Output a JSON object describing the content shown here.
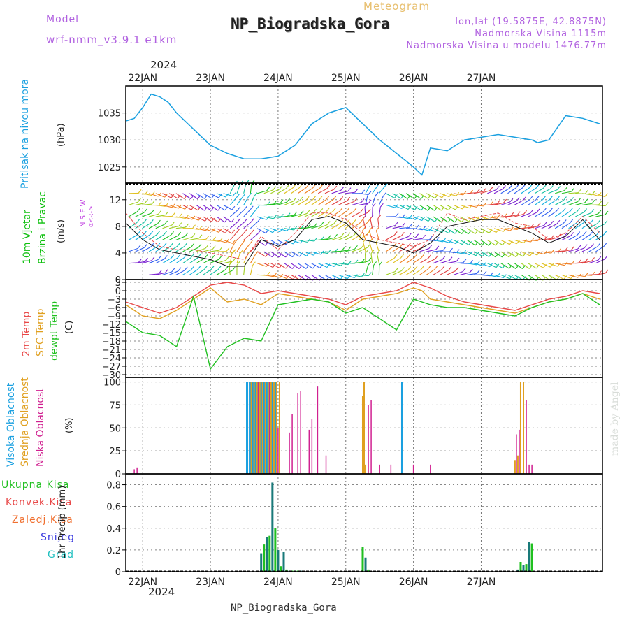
{
  "header": {
    "model_label": "Model",
    "model_name": "wrf-nmm_v3.9.1 e1km",
    "meteogram_label": "Meteogram",
    "station_title": "NP_Biogradska_Gora",
    "lonlat": "lon,lat (19.5875E, 42.8875N)",
    "elevation": "Nadmorska Visina 1115m",
    "model_elevation": "Nadmorska Visina u modelu 1476.77m",
    "footer_station": "NP_Biogradska_Gora",
    "watermark": "made by Angel",
    "year_top": "2024",
    "year_bottom": "2024"
  },
  "colors": {
    "pressure": "#1aa0e0",
    "wind_label": "#10c010",
    "dir_label": "#c040e0",
    "temp2m": "#e84848",
    "sfc": "#e0a020",
    "dew": "#20c020",
    "high": "#1aa0e0",
    "mid": "#e0a020",
    "low": "#d02090",
    "precip_total": "#20c020",
    "precip_conv": "#e84848",
    "precip_frozen": "#f07030",
    "precip_snow": "#4040e0",
    "precip_grad": "#20c0c0",
    "title": "#222222",
    "meteogram": "#e8c070",
    "model": "#b060e0"
  },
  "chart_data": [
    {
      "type": "line",
      "name": "pressure",
      "ylabel": "Pritisak na nivou mora",
      "unit": "(hPa)",
      "x_unit": "hours from 22JAN 00",
      "ylim": [
        1022,
        1040
      ],
      "yticks": [
        1025,
        1030,
        1035
      ],
      "x": [
        -6,
        -3,
        0,
        3,
        6,
        9,
        12,
        18,
        24,
        30,
        36,
        42,
        48,
        54,
        57,
        60,
        66,
        72,
        78,
        84,
        90,
        96,
        99,
        102,
        108,
        114,
        120,
        126,
        132,
        138,
        140,
        144,
        150,
        156,
        162
      ],
      "values": [
        1033.5,
        1034,
        1036,
        1038.5,
        1038,
        1037,
        1035,
        1032,
        1029,
        1027.5,
        1026.5,
        1026.5,
        1027,
        1029,
        1031,
        1033,
        1035,
        1036,
        1033,
        1030,
        1027.5,
        1025,
        1023.5,
        1028.5,
        1028,
        1030,
        1030.5,
        1031,
        1030.5,
        1030,
        1029.5,
        1030,
        1034.5,
        1034,
        1033
      ]
    },
    {
      "type": "barbs",
      "name": "wind",
      "ylabel": "10m Vjetar Brzina i Pravac",
      "unit": "(m/s)",
      "dir_legend": "N S E W",
      "dir_sub": "α<-:->",
      "ylim": [
        0,
        14.5
      ],
      "yticks": [
        0,
        4,
        8,
        12
      ],
      "x": [
        -6,
        0,
        6,
        12,
        18,
        24,
        30,
        36,
        42,
        48,
        54,
        60,
        66,
        72,
        78,
        84,
        90,
        96,
        102,
        108,
        114,
        120,
        126,
        132,
        138,
        144,
        150,
        156,
        162
      ],
      "speed": [
        8.5,
        6,
        4.5,
        4,
        3.5,
        3,
        2,
        2,
        6,
        5,
        6,
        9,
        9.5,
        8.5,
        6,
        5.5,
        5,
        4,
        5.5,
        8,
        8.5,
        9,
        9,
        8,
        7,
        5.5,
        6.5,
        9,
        6
      ],
      "gust": [
        10,
        7,
        5,
        4.5,
        4.5,
        4,
        3.5,
        3,
        6.5,
        4.5,
        7,
        10,
        10,
        9,
        7,
        6,
        5.5,
        5,
        6,
        10,
        9,
        9.5,
        10,
        8.5,
        8,
        6,
        7,
        9.5,
        7
      ]
    },
    {
      "type": "line",
      "name": "temperature",
      "ylabel_2m": "2m Temp",
      "ylabel_sfc": "SFC Temp",
      "ylabel_dew": "dewpt Temp",
      "unit": "(C)",
      "ylim": [
        -31,
        4
      ],
      "yticks": [
        3,
        0,
        -3,
        -6,
        -9,
        -12,
        -15,
        -18,
        -21,
        -24,
        -27,
        -30
      ],
      "x": [
        -6,
        0,
        6,
        12,
        18,
        24,
        30,
        36,
        42,
        48,
        54,
        60,
        66,
        72,
        78,
        84,
        90,
        96,
        99,
        102,
        108,
        114,
        120,
        126,
        132,
        138,
        144,
        150,
        156,
        162
      ],
      "series": [
        {
          "name": "2m Temp",
          "values": [
            -4,
            -6,
            -8,
            -6,
            -2,
            2,
            3,
            2,
            -1,
            0,
            -1,
            -2,
            -3,
            -5,
            -2,
            -1,
            0,
            3,
            2,
            1,
            -2,
            -4,
            -5,
            -6,
            -7,
            -5,
            -3,
            -2,
            0,
            -1
          ]
        },
        {
          "name": "SFC Temp",
          "values": [
            -5,
            -9,
            -10,
            -7,
            -3,
            1,
            -4,
            -3,
            -5,
            -1,
            -2,
            -3,
            -4,
            -7,
            -3,
            -2,
            -1,
            1,
            0,
            -3,
            -4,
            -5,
            -6,
            -7,
            -8,
            -6,
            -4,
            -3,
            -1,
            -3
          ]
        },
        {
          "name": "dewpt Temp",
          "values": [
            -11,
            -15,
            -16,
            -20,
            -2,
            -28,
            -20,
            -17,
            -18,
            -5,
            -4,
            -3,
            -4,
            -8,
            -6,
            -10,
            -14,
            -3,
            -4,
            -5,
            -6,
            -6,
            -7,
            -8,
            -9,
            -6,
            -4,
            -3,
            -1,
            -5
          ]
        }
      ]
    },
    {
      "type": "bar",
      "name": "cloud",
      "ylabel_high": "Visoka Oblacnost",
      "ylabel_mid": "Srednja Oblacnost",
      "ylabel_low": "Niska Oblacnost",
      "unit": "(%)",
      "ylim": [
        0,
        105
      ],
      "yticks": [
        0,
        25,
        50,
        75,
        100
      ],
      "series": [
        {
          "name": "Visoka Oblacnost",
          "x": [
            37,
            38,
            39,
            40,
            41,
            42,
            43,
            44,
            45,
            46,
            47,
            92
          ],
          "values": [
            100,
            100,
            100,
            100,
            100,
            100,
            100,
            100,
            100,
            100,
            100,
            100
          ]
        },
        {
          "name": "Srednja Oblacnost",
          "x": [
            38.5,
            39.5,
            40.5,
            41.5,
            42.5,
            43.5,
            44.5,
            45.5,
            46.5,
            47.5,
            48.5,
            78,
            78.5,
            79,
            132,
            133,
            134,
            135
          ],
          "values": [
            100,
            100,
            100,
            100,
            100,
            100,
            100,
            100,
            100,
            100,
            100,
            85,
            100,
            10,
            15,
            20,
            100,
            100
          ]
        },
        {
          "name": "Niska Oblacnost",
          "x": [
            -3,
            -2,
            41,
            45,
            48,
            52,
            53,
            55,
            56,
            59,
            60,
            62,
            65,
            80,
            81,
            84,
            88,
            96,
            102,
            132.5,
            133.5,
            136,
            137,
            138
          ],
          "values": [
            5,
            7,
            100,
            100,
            50,
            45,
            65,
            88,
            90,
            48,
            60,
            95,
            20,
            75,
            80,
            10,
            10,
            10,
            10,
            43,
            48,
            80,
            10,
            10
          ]
        }
      ]
    },
    {
      "type": "bar",
      "name": "precip",
      "legend": [
        "Ukupna Kisa",
        "Konvek.Kisa",
        "Zaledj.Kisa",
        "Snijeg",
        "Grad"
      ],
      "ylabel": "1hr Precip",
      "unit": "(mm)",
      "ylim": [
        0,
        0.9
      ],
      "yticks": [
        0,
        0.2,
        0.4,
        0.6,
        0.8
      ],
      "x": [
        42,
        43,
        44,
        45,
        46,
        47,
        48,
        49,
        50,
        51,
        52,
        53,
        54,
        55,
        56,
        78,
        79,
        80,
        133,
        134,
        135,
        136,
        137,
        138
      ],
      "values": [
        0.17,
        0.25,
        0.32,
        0.33,
        0.82,
        0.4,
        0.2,
        0.05,
        0.18,
        0.02,
        0.01,
        0.01,
        0.01,
        0.01,
        0.01,
        0.23,
        0.13,
        0.02,
        0.02,
        0.09,
        0.06,
        0.07,
        0.27,
        0.26
      ]
    }
  ],
  "x_axis": {
    "days": [
      "22JAN",
      "23JAN",
      "24JAN",
      "25JAN",
      "26JAN",
      "27JAN"
    ],
    "xlim": [
      -6,
      163
    ]
  }
}
